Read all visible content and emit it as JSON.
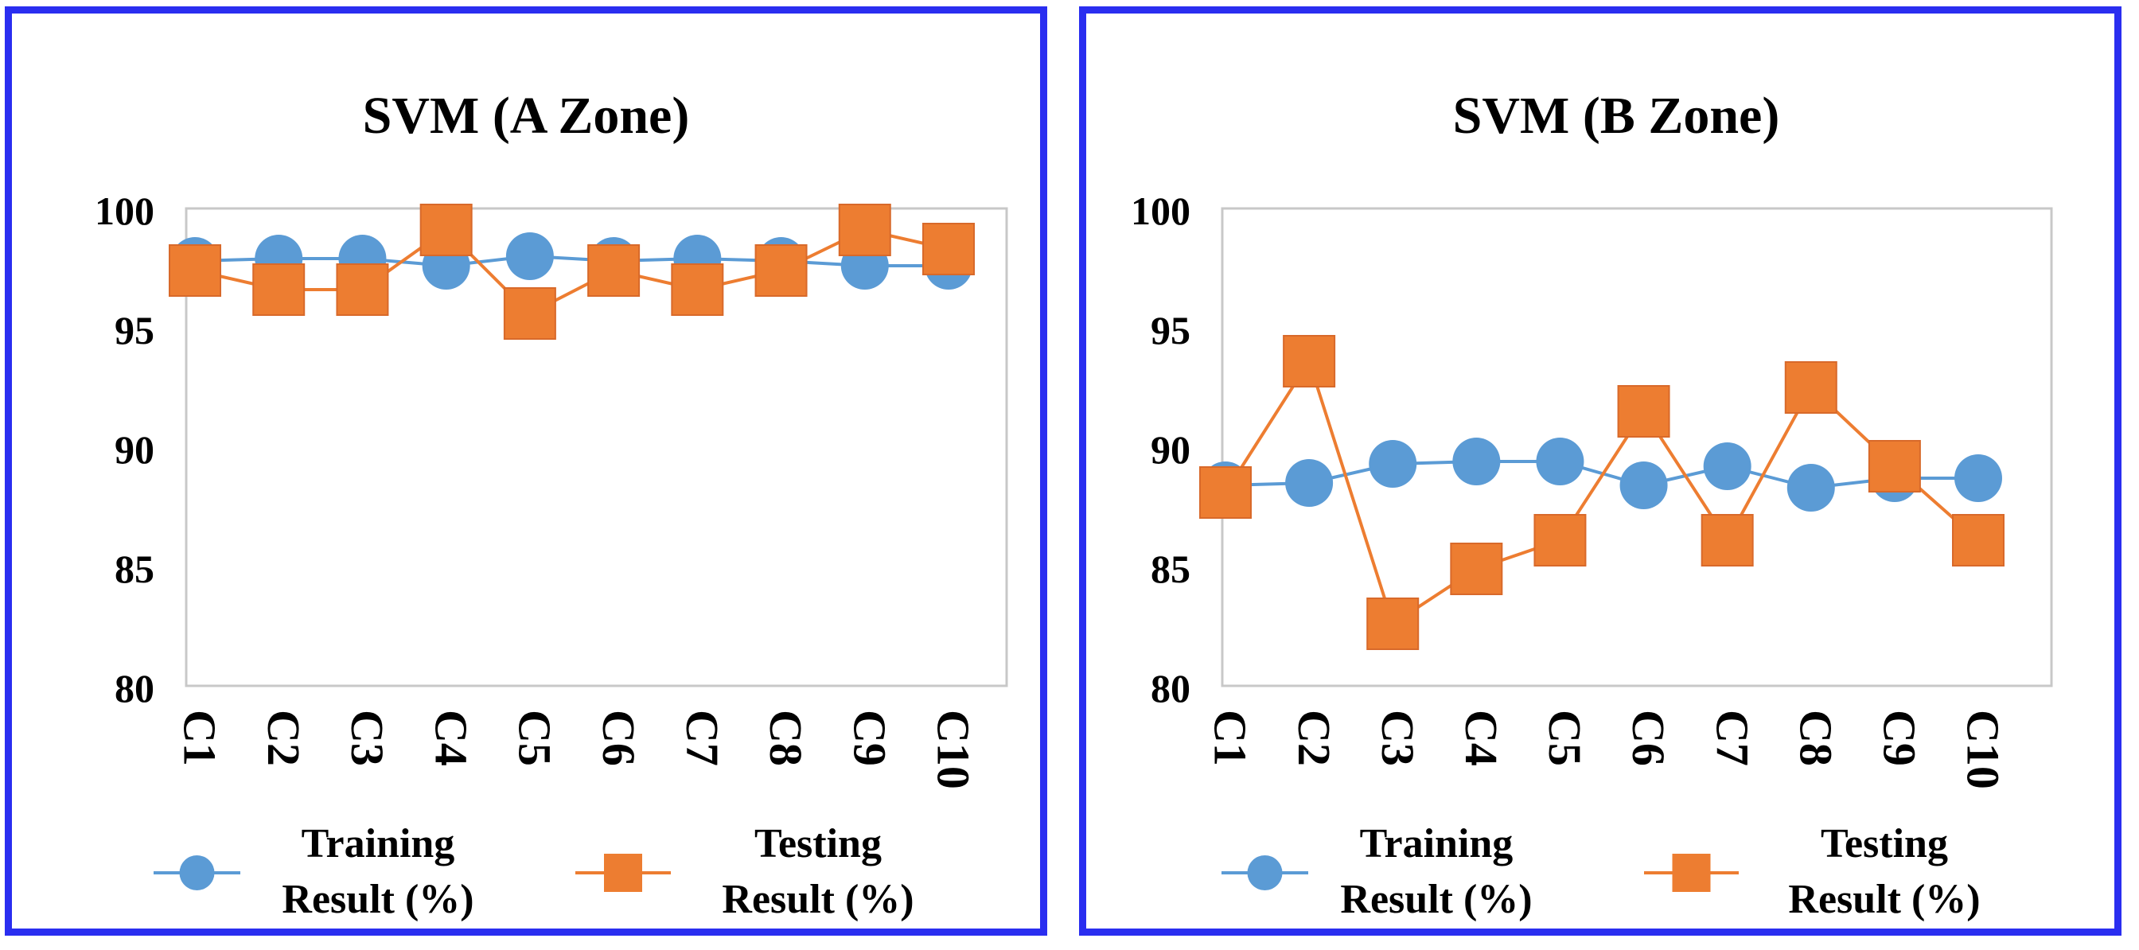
{
  "chart_data": [
    {
      "type": "line",
      "title": "SVM (A Zone)",
      "categories": [
        "C1",
        "C2",
        "C3",
        "C4",
        "C5",
        "C6",
        "C7",
        "C8",
        "C9",
        "C10"
      ],
      "ylim": [
        80,
        100
      ],
      "yticks": [
        80,
        85,
        90,
        95,
        100
      ],
      "grid": false,
      "legend_position": "bottom",
      "series": [
        {
          "name": "Training Result (%)",
          "legend_lines": [
            "Training",
            "Result (%)"
          ],
          "color": "#5b9bd5",
          "marker": "circle",
          "values": [
            97.8,
            97.9,
            97.9,
            97.6,
            98.0,
            97.8,
            97.9,
            97.8,
            97.6,
            97.6
          ]
        },
        {
          "name": "Testing Result (%)",
          "legend_lines": [
            "Testing",
            "Result (%)"
          ],
          "color": "#ed7d31",
          "marker": "square",
          "values": [
            97.4,
            96.6,
            96.6,
            99.1,
            95.6,
            97.4,
            96.6,
            97.4,
            99.1,
            98.3
          ]
        }
      ]
    },
    {
      "type": "line",
      "title": "SVM (B Zone)",
      "categories": [
        "C1",
        "C2",
        "C3",
        "C4",
        "C5",
        "C6",
        "C7",
        "C8",
        "C9",
        "C10"
      ],
      "ylim": [
        80,
        100
      ],
      "yticks": [
        80,
        85,
        90,
        95,
        100
      ],
      "grid": false,
      "legend_position": "bottom",
      "series": [
        {
          "name": "Training Result (%)",
          "legend_lines": [
            "Training",
            "Result (%)"
          ],
          "color": "#5b9bd5",
          "marker": "circle",
          "values": [
            88.4,
            88.5,
            89.3,
            89.4,
            89.4,
            88.4,
            89.2,
            88.3,
            88.7,
            88.7
          ]
        },
        {
          "name": "Testing Result (%)",
          "legend_lines": [
            "Testing",
            "Result (%)"
          ],
          "color": "#ed7d31",
          "marker": "square",
          "values": [
            88.1,
            93.6,
            82.6,
            84.9,
            86.1,
            91.5,
            86.1,
            92.5,
            89.2,
            86.1
          ]
        }
      ]
    }
  ]
}
